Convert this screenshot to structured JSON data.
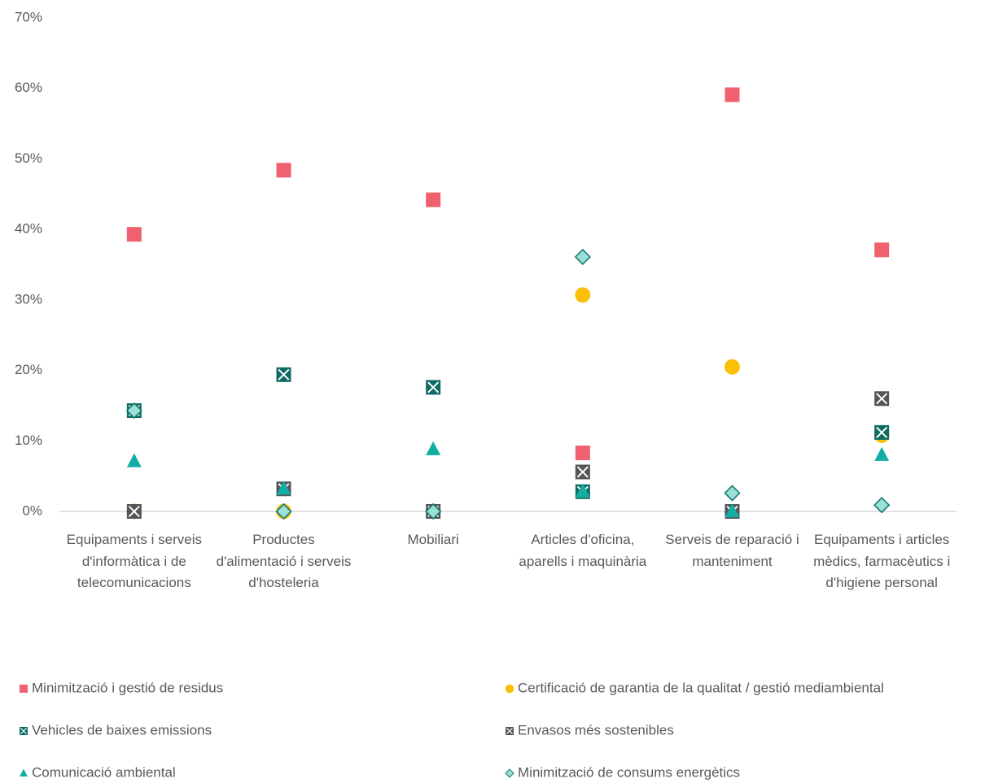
{
  "chart_data": {
    "type": "scatter",
    "categories": [
      "Equipaments i serveis d'informàtica i de telecomunicacions",
      "Productes d'alimentació i serveis d'hosteleria",
      "Mobiliari",
      "Articles d'oficina, aparells i maquinària",
      "Serveis de reparació i manteniment",
      "Equipaments i articles mèdics, farmacèutics i d'higiene personal"
    ],
    "series": [
      {
        "name": "Minimització i gestió de residus",
        "color": "#f0616f",
        "marker": "square",
        "values": [
          39.3,
          48.4,
          44.2,
          8.3,
          59.1,
          37.1
        ]
      },
      {
        "name": "Certificació de garantia de la qualitat / gestió mediambiental",
        "color": "#fbbf07",
        "marker": "circle",
        "values": [
          0,
          0,
          0,
          30.7,
          20.5,
          10.8
        ]
      },
      {
        "name": "Vehicles de baixes emissions",
        "color": "#0e6b64",
        "marker": "square-x",
        "values": [
          14.3,
          19.4,
          17.6,
          2.8,
          0,
          11.2
        ]
      },
      {
        "name": "Envasos més sostenibles",
        "color": "#555555",
        "marker": "box-x",
        "values": [
          0,
          3.2,
          0,
          5.6,
          0,
          16.0
        ]
      },
      {
        "name": "Comunicació ambiental",
        "color": "#13aea3",
        "marker": "triangle",
        "values": [
          7.1,
          3.2,
          8.8,
          2.8,
          0,
          8.0
        ]
      },
      {
        "name": "Minimització de consums energètics",
        "color": "#9be0d8",
        "marker": "diamond",
        "values": [
          14.3,
          0,
          0,
          36.1,
          2.6,
          0.9
        ]
      }
    ],
    "ylim": [
      0,
      70
    ],
    "yticks": [
      {
        "value": 0,
        "label": "0%"
      },
      {
        "value": 10,
        "label": "10%"
      },
      {
        "value": 20,
        "label": "20%"
      },
      {
        "value": 30,
        "label": "30%"
      },
      {
        "value": 40,
        "label": "40%"
      },
      {
        "value": 50,
        "label": "50%"
      },
      {
        "value": 60,
        "label": "60%"
      },
      {
        "value": 70,
        "label": "70%"
      }
    ],
    "grid": false
  }
}
